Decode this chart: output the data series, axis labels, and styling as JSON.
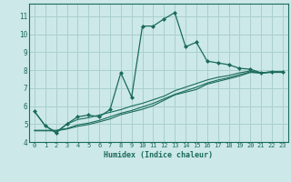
{
  "xlabel": "Humidex (Indice chaleur)",
  "ylabel": "",
  "bg_color": "#cce8e8",
  "grid_color": "#aacfcf",
  "line_color": "#1a6b5a",
  "xlim": [
    -0.5,
    23.5
  ],
  "ylim": [
    4,
    11.7
  ],
  "xticks": [
    0,
    1,
    2,
    3,
    4,
    5,
    6,
    7,
    8,
    9,
    10,
    11,
    12,
    13,
    14,
    15,
    16,
    17,
    18,
    19,
    20,
    21,
    22,
    23
  ],
  "yticks": [
    4,
    5,
    6,
    7,
    8,
    9,
    10,
    11
  ],
  "series": [
    [
      5.7,
      4.9,
      4.5,
      5.0,
      5.4,
      5.5,
      5.4,
      5.8,
      7.85,
      6.5,
      10.45,
      10.45,
      10.85,
      11.2,
      9.3,
      9.55,
      8.5,
      8.4,
      8.3,
      8.1,
      8.05,
      7.85,
      7.9,
      7.9
    ],
    [
      5.7,
      4.9,
      4.55,
      5.0,
      5.25,
      5.35,
      5.5,
      5.65,
      5.8,
      6.0,
      6.15,
      6.35,
      6.55,
      6.85,
      7.05,
      7.25,
      7.45,
      7.6,
      7.7,
      7.85,
      7.95,
      7.85,
      7.9,
      7.9
    ],
    [
      4.65,
      4.65,
      4.65,
      4.75,
      4.95,
      5.05,
      5.2,
      5.4,
      5.6,
      5.75,
      5.95,
      6.15,
      6.4,
      6.65,
      6.85,
      7.05,
      7.28,
      7.45,
      7.58,
      7.75,
      7.9,
      7.85,
      7.9,
      7.9
    ],
    [
      4.62,
      4.62,
      4.62,
      4.72,
      4.87,
      4.97,
      5.12,
      5.28,
      5.52,
      5.67,
      5.82,
      6.02,
      6.32,
      6.62,
      6.77,
      6.92,
      7.22,
      7.37,
      7.52,
      7.67,
      7.87,
      7.83,
      7.87,
      7.87
    ]
  ]
}
